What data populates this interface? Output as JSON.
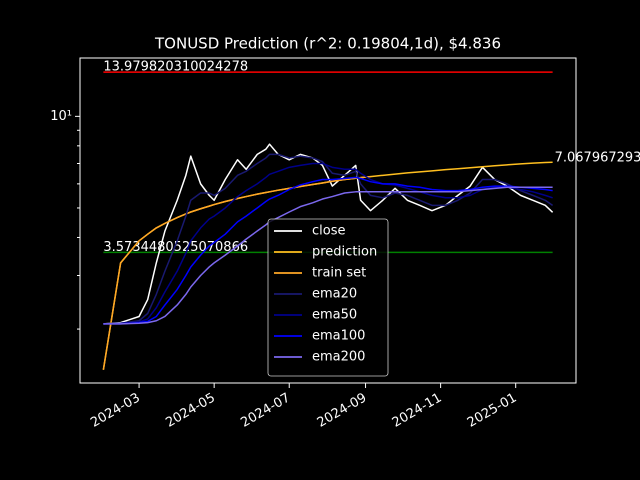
{
  "chart_data": {
    "type": "line",
    "title": "TONUSD Prediction (r^2: 0.19804,1d), $4.836",
    "x": [
      0,
      14,
      29,
      36,
      43,
      50,
      60,
      67,
      71,
      79,
      86,
      90,
      99,
      109,
      116,
      125,
      132,
      135,
      142,
      151,
      160,
      170,
      178,
      186,
      196,
      205,
      209,
      217,
      227,
      237,
      247,
      257,
      267,
      278,
      288,
      298,
      308,
      318,
      328,
      339,
      349,
      359,
      365
    ],
    "xlim": [
      -19,
      384
    ],
    "xticks": [
      {
        "value": 29,
        "label": "2024-03"
      },
      {
        "value": 90,
        "label": "2024-05"
      },
      {
        "value": 151,
        "label": "2024-07"
      },
      {
        "value": 213,
        "label": "2024-09"
      },
      {
        "value": 274,
        "label": "2024-11"
      },
      {
        "value": 335,
        "label": "2025-01"
      }
    ],
    "ylim": [
      1.33,
      15.55
    ],
    "log_y": true,
    "yticks": [
      {
        "value": 10,
        "label": "10¹"
      }
    ],
    "yminorticks": [
      2,
      3,
      4,
      5,
      6,
      7,
      8,
      9
    ],
    "legend": "lower center",
    "series": [
      {
        "name": "close",
        "color": "#ffffff",
        "values": [
          2.08,
          2.1,
          2.2,
          2.5,
          3.3,
          4.2,
          5.3,
          6.4,
          7.4,
          6.0,
          5.5,
          5.3,
          6.2,
          7.2,
          6.7,
          7.5,
          7.8,
          8.1,
          7.5,
          7.2,
          7.5,
          7.3,
          6.9,
          5.9,
          6.4,
          6.9,
          5.3,
          4.9,
          5.3,
          5.8,
          5.3,
          5.1,
          4.9,
          5.1,
          5.5,
          5.9,
          6.8,
          6.2,
          5.9,
          5.5,
          5.3,
          5.1,
          4.84
        ]
      },
      {
        "name": "prediction",
        "color": "#ffbf1f",
        "values": [
          1.47,
          3.3,
          3.9,
          4.1,
          4.3,
          4.45,
          4.65,
          4.78,
          4.85,
          4.97,
          5.07,
          5.13,
          5.25,
          5.37,
          5.45,
          5.55,
          5.62,
          5.65,
          5.72,
          5.8,
          5.88,
          5.97,
          6.04,
          6.12,
          6.2,
          6.26,
          6.29,
          6.34,
          6.4,
          6.46,
          6.52,
          6.57,
          6.62,
          6.68,
          6.73,
          6.78,
          6.83,
          6.88,
          6.93,
          6.98,
          7.02,
          7.05,
          7.068
        ]
      },
      {
        "name": "train set",
        "color": "#ffa726",
        "values": [
          1.47,
          3.3,
          3.9,
          4.1,
          4.3,
          4.45,
          4.65,
          4.78,
          4.85,
          4.97,
          5.07,
          5.13,
          5.25,
          5.37,
          5.45,
          5.55,
          5.62,
          5.65,
          5.72,
          5.8,
          5.88,
          5.97,
          6.04,
          6.12,
          6.2,
          6.26,
          6.29,
          6.34,
          null,
          null,
          null,
          null,
          null,
          null,
          null,
          null,
          null,
          null,
          null,
          null,
          null,
          null,
          null
        ]
      },
      {
        "name": "ema20",
        "color": "#191970",
        "values": [
          2.08,
          2.09,
          2.13,
          2.25,
          2.6,
          3.1,
          3.9,
          4.7,
          5.3,
          5.6,
          5.6,
          5.5,
          5.8,
          6.4,
          6.6,
          7.0,
          7.3,
          7.5,
          7.5,
          7.3,
          7.4,
          7.3,
          7.1,
          6.5,
          6.4,
          6.6,
          6.0,
          5.5,
          5.4,
          5.6,
          5.5,
          5.3,
          5.1,
          5.1,
          5.3,
          5.6,
          6.2,
          6.2,
          6.0,
          5.7,
          5.5,
          5.3,
          5.1
        ]
      },
      {
        "name": "ema50",
        "color": "#00008b",
        "values": [
          2.08,
          2.09,
          2.11,
          2.16,
          2.35,
          2.65,
          3.1,
          3.55,
          3.9,
          4.3,
          4.6,
          4.7,
          5.0,
          5.45,
          5.7,
          6.0,
          6.3,
          6.45,
          6.6,
          6.8,
          6.9,
          7.0,
          7.0,
          6.8,
          6.7,
          6.7,
          6.5,
          6.2,
          6.0,
          5.95,
          5.8,
          5.65,
          5.5,
          5.4,
          5.4,
          5.5,
          5.75,
          5.85,
          5.85,
          5.75,
          5.65,
          5.5,
          5.4
        ]
      },
      {
        "name": "ema100",
        "color": "#0000ff",
        "values": [
          2.08,
          2.08,
          2.1,
          2.12,
          2.2,
          2.4,
          2.7,
          3.0,
          3.2,
          3.5,
          3.75,
          3.85,
          4.1,
          4.5,
          4.7,
          5.0,
          5.25,
          5.35,
          5.5,
          5.75,
          5.95,
          6.1,
          6.2,
          6.2,
          6.25,
          6.3,
          6.25,
          6.1,
          6.0,
          6.0,
          5.9,
          5.85,
          5.75,
          5.7,
          5.7,
          5.75,
          5.85,
          5.9,
          5.9,
          5.85,
          5.8,
          5.75,
          5.7
        ]
      },
      {
        "name": "ema200",
        "color": "#7b68ee",
        "values": [
          2.08,
          2.08,
          2.09,
          2.1,
          2.13,
          2.2,
          2.4,
          2.6,
          2.75,
          3.0,
          3.2,
          3.3,
          3.5,
          3.75,
          3.95,
          4.2,
          4.4,
          4.5,
          4.65,
          4.85,
          5.05,
          5.2,
          5.35,
          5.45,
          5.6,
          5.65,
          5.65,
          5.65,
          5.65,
          5.65,
          5.65,
          5.65,
          5.65,
          5.65,
          5.65,
          5.7,
          5.75,
          5.8,
          5.85,
          5.85,
          5.85,
          5.85,
          5.85
        ]
      }
    ],
    "hlines": [
      {
        "value": 13.979820310024278,
        "label": "13.979820310024278",
        "color": "#ff0000"
      },
      {
        "value": 3.5734480525070866,
        "label": "3.5734480525070866",
        "color": "#008000"
      }
    ],
    "end_label": "7.067967293"
  }
}
